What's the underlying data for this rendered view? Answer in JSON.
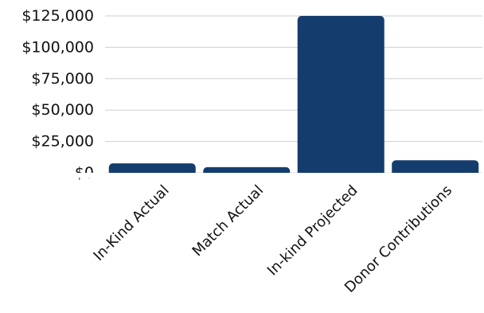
{
  "chart_data": {
    "type": "bar",
    "categories": [
      "In-Kind Actual",
      "Match Actual",
      "In-kind Projected",
      "Donor Contributions"
    ],
    "values": [
      7500,
      4500,
      125000,
      10000
    ],
    "title": "",
    "xlabel": "",
    "ylabel": "",
    "ylim": [
      0,
      125000
    ],
    "yticks": [
      0,
      25000,
      50000,
      75000,
      100000,
      125000
    ],
    "ytick_labels": [
      "$0",
      "$25,000",
      "$50,000",
      "$75,000",
      "$100,000",
      "$125,000"
    ],
    "grid": true,
    "legend": "none",
    "bar_color": "#143d6e"
  }
}
